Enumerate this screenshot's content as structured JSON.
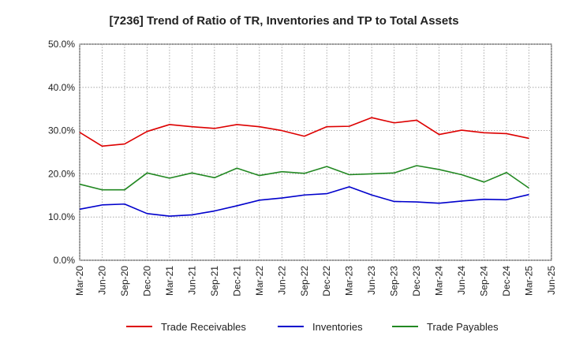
{
  "chart_data": {
    "type": "line",
    "title": "[7236]  Trend of Ratio of TR, Inventories and TP to Total Assets",
    "xlabel": "",
    "ylabel": "",
    "ylim": [
      0,
      50
    ],
    "yticks": [
      0,
      10,
      20,
      30,
      40,
      50
    ],
    "ytick_labels": [
      "0.0%",
      "10.0%",
      "20.0%",
      "30.0%",
      "40.0%",
      "50.0%"
    ],
    "x_tick_labels": [
      "Mar-20",
      "Jun-20",
      "Sep-20",
      "Dec-20",
      "Mar-21",
      "Jun-21",
      "Sep-21",
      "Dec-21",
      "Mar-22",
      "Jun-22",
      "Sep-22",
      "Dec-22",
      "Mar-23",
      "Jun-23",
      "Sep-23",
      "Dec-23",
      "Mar-24",
      "Jun-24",
      "Sep-24",
      "Dec-24",
      "Mar-25",
      "Jun-25"
    ],
    "categories": [
      "Mar-20",
      "Jun-20",
      "Sep-20",
      "Dec-20",
      "Mar-21",
      "Jun-21",
      "Sep-21",
      "Dec-21",
      "Mar-22",
      "Jun-22",
      "Sep-22",
      "Dec-22",
      "Mar-23",
      "Jun-23",
      "Sep-23",
      "Dec-23",
      "Mar-24",
      "Jun-24",
      "Sep-24",
      "Dec-24",
      "Mar-25"
    ],
    "grid": true,
    "legend_position": "bottom",
    "series": [
      {
        "name": "Trade Receivables",
        "color": "#dd0000",
        "values": [
          29.6,
          26.4,
          26.9,
          29.8,
          31.4,
          30.9,
          30.5,
          31.4,
          30.9,
          30.0,
          28.7,
          30.9,
          31.0,
          33.0,
          31.8,
          32.4,
          29.1,
          30.1,
          29.5,
          29.3,
          28.2
        ]
      },
      {
        "name": "Inventories",
        "color": "#0000cc",
        "values": [
          11.8,
          12.8,
          13.0,
          10.8,
          10.2,
          10.5,
          11.4,
          12.6,
          13.9,
          14.4,
          15.1,
          15.4,
          17.0,
          15.1,
          13.6,
          13.5,
          13.2,
          13.7,
          14.1,
          14.0,
          15.2
        ]
      },
      {
        "name": "Trade Payables",
        "color": "#228822",
        "values": [
          17.6,
          16.3,
          16.3,
          20.2,
          19.0,
          20.2,
          19.1,
          21.3,
          19.6,
          20.5,
          20.1,
          21.7,
          19.8,
          20.0,
          20.2,
          21.9,
          21.0,
          19.8,
          18.1,
          20.3,
          16.7
        ]
      }
    ]
  }
}
